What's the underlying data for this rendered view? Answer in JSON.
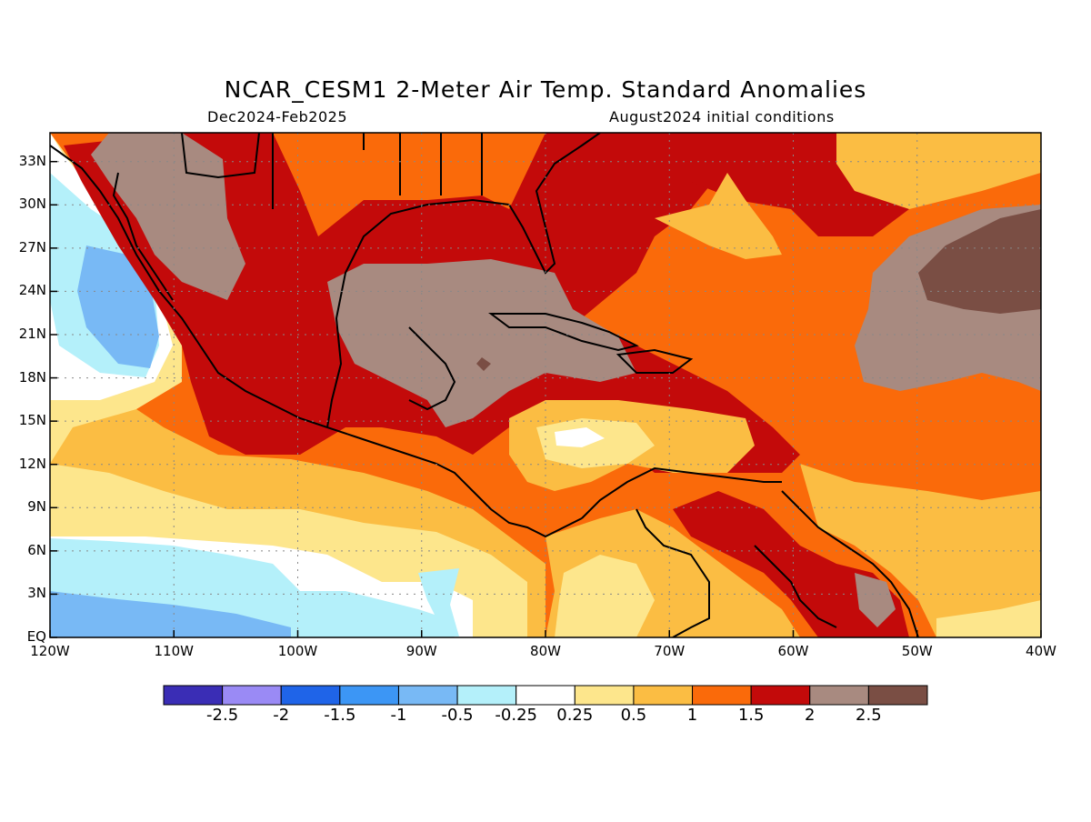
{
  "title": "NCAR_CESM1 2-Meter Air Temp. Standard Anomalies",
  "subtitle_left": "Dec2024-Feb2025",
  "subtitle_right": "August2024 initial conditions",
  "lat_labels": [
    "33N",
    "30N",
    "27N",
    "24N",
    "21N",
    "18N",
    "15N",
    "12N",
    "9N",
    "6N",
    "3N",
    "EQ"
  ],
  "lon_labels": [
    "120W",
    "110W",
    "100W",
    "90W",
    "80W",
    "70W",
    "60W",
    "50W",
    "40W"
  ],
  "map": {
    "lon_range": [
      -120,
      -40
    ],
    "lat_range": [
      0,
      35
    ],
    "grid": true
  },
  "colorbar": {
    "colors": [
      "#3a2db5",
      "#9a8af5",
      "#1f64e8",
      "#3c96f5",
      "#78b9f5",
      "#b4f0fa",
      "#ffffff",
      "#fde68c",
      "#fbbd43",
      "#fa6a0a",
      "#c30a0a",
      "#a88a80",
      "#7a4e44"
    ],
    "labels": [
      "-2.5",
      "-2",
      "-1.5",
      "-1",
      "-0.5",
      "-0.25",
      "0.25",
      "0.5",
      "1",
      "1.5",
      "2",
      "2.5"
    ]
  }
}
